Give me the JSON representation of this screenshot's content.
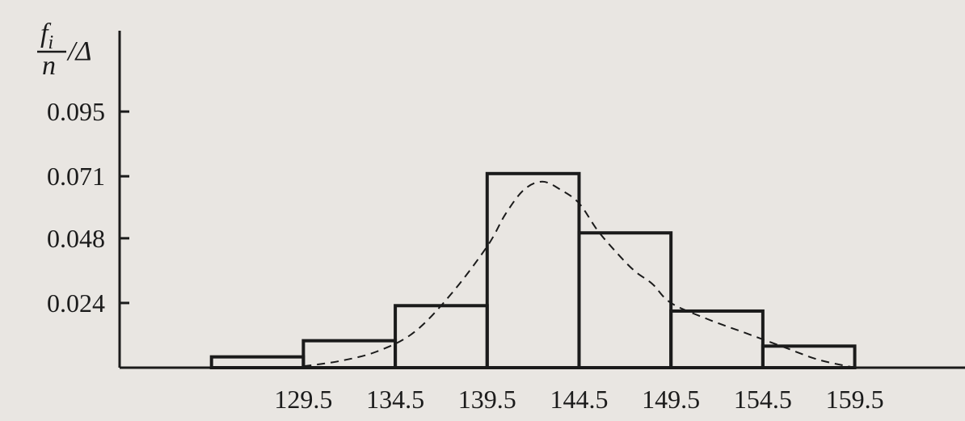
{
  "chart_data": {
    "type": "bar",
    "ylabel": {
      "numerator": "f",
      "numerator_sub": "i",
      "denominator": "n",
      "suffix": "/Δ"
    },
    "x_ticks": [
      129.5,
      134.5,
      139.5,
      144.5,
      149.5,
      154.5,
      159.5
    ],
    "x_tick_labels": [
      "129.5",
      "134.5",
      "139.5",
      "144.5",
      "149.5",
      "154.5",
      "159.5"
    ],
    "y_ticks": [
      0.024,
      0.048,
      0.071,
      0.095
    ],
    "y_tick_labels": [
      "0.024",
      "0.048",
      "0.071",
      "0.095"
    ],
    "bins": [
      {
        "from": 124.5,
        "to": 129.5,
        "value": 0.004
      },
      {
        "from": 129.5,
        "to": 134.5,
        "value": 0.01
      },
      {
        "from": 134.5,
        "to": 139.5,
        "value": 0.023
      },
      {
        "from": 139.5,
        "to": 144.5,
        "value": 0.072
      },
      {
        "from": 144.5,
        "to": 149.5,
        "value": 0.05
      },
      {
        "from": 149.5,
        "to": 154.5,
        "value": 0.021
      },
      {
        "from": 154.5,
        "to": 159.5,
        "value": 0.008
      }
    ],
    "curve": {
      "style": "dashed",
      "points": [
        [
          129.5,
          0.0005
        ],
        [
          131.5,
          0.0025
        ],
        [
          133.5,
          0.006
        ],
        [
          135.5,
          0.013
        ],
        [
          137.5,
          0.027
        ],
        [
          139.5,
          0.045
        ],
        [
          140.5,
          0.057
        ],
        [
          141.5,
          0.066
        ],
        [
          142.5,
          0.069
        ],
        [
          143.5,
          0.066
        ],
        [
          144.5,
          0.061
        ],
        [
          145.5,
          0.051
        ],
        [
          146.5,
          0.043
        ],
        [
          147.5,
          0.036
        ],
        [
          148.5,
          0.031
        ],
        [
          149.5,
          0.024
        ],
        [
          151.5,
          0.018
        ],
        [
          153.5,
          0.013
        ],
        [
          155.5,
          0.008
        ],
        [
          157.5,
          0.003
        ],
        [
          159.5,
          0.0
        ]
      ]
    },
    "xlim": [
      119.5,
      165.5
    ],
    "ylim": [
      0,
      0.125
    ],
    "grid": false,
    "legend": "none"
  }
}
